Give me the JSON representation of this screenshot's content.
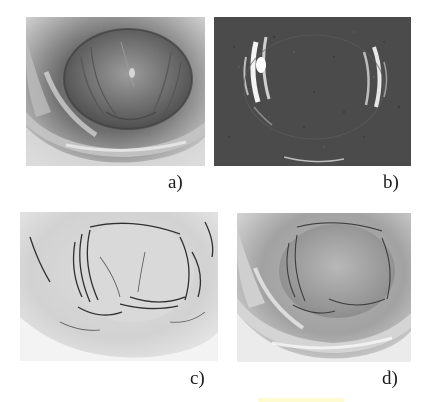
{
  "figure": {
    "panels": [
      {
        "id": "a",
        "label": "a)",
        "description_icon": "endoscopic-lumen-grayscale"
      },
      {
        "id": "b",
        "label": "b)",
        "description_icon": "endoscopic-lumen-edge-response"
      },
      {
        "id": "c",
        "label": "c)",
        "description_icon": "endoscopic-lumen-detected-folds"
      },
      {
        "id": "d",
        "label": "d)",
        "description_icon": "endoscopic-lumen-overlay"
      }
    ]
  },
  "colors": {
    "background": "#ffffff",
    "panel_b_bg": "#4a4a4a",
    "label_text": "#1a1a1a",
    "highlight_mark": "#fffbd0"
  }
}
